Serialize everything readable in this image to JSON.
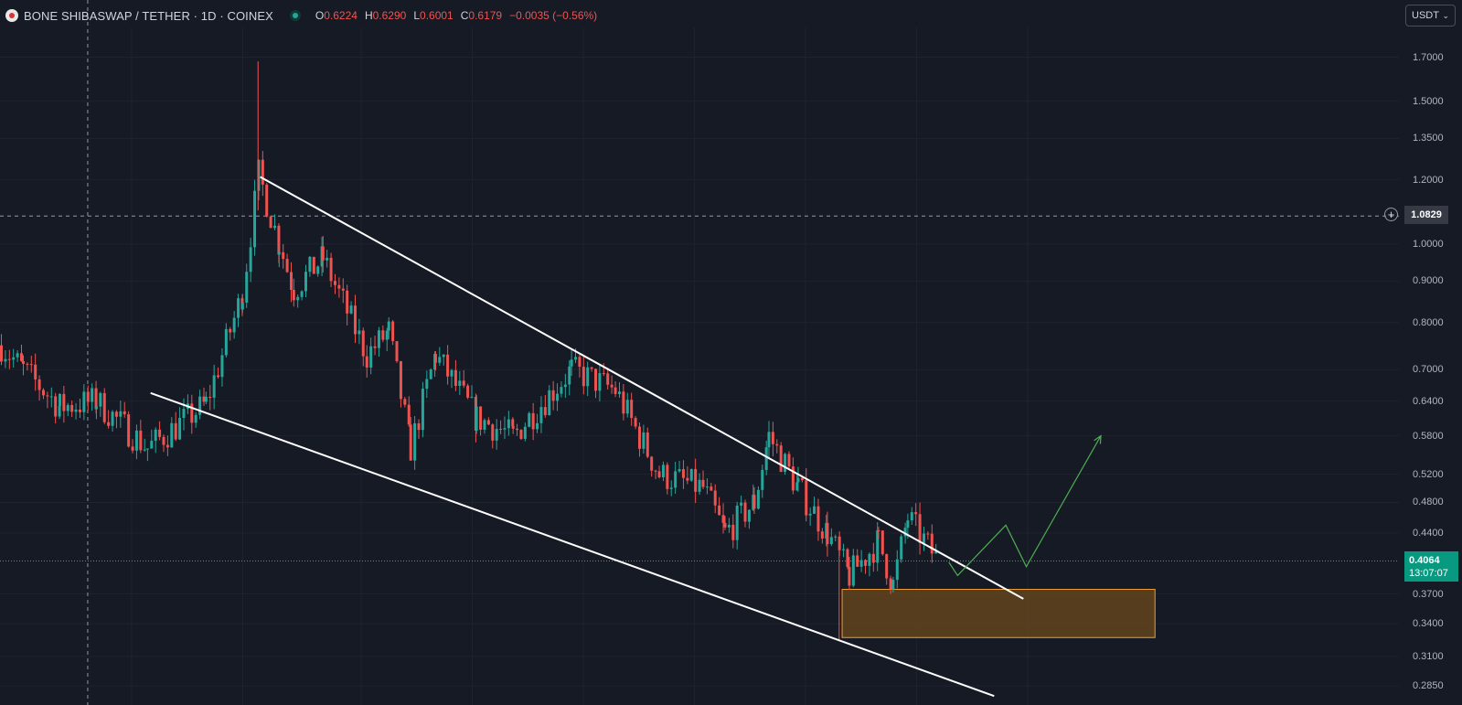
{
  "header": {
    "symbol": "BONE SHIBASWAP / TETHER · 1D · COINEX",
    "ohlc": [
      {
        "key": "O",
        "value": "0.6224"
      },
      {
        "key": "H",
        "value": "0.6290"
      },
      {
        "key": "L",
        "value": "0.6001"
      },
      {
        "key": "C",
        "value": "0.6179"
      }
    ],
    "change": "−0.0035 (−0.56%)"
  },
  "currency_button": {
    "label": "USDT",
    "icon": "chevron-down-icon"
  },
  "price_axis": {
    "labels": [
      "1.7000",
      "1.5000",
      "1.3500",
      "1.2000",
      "1.0000",
      "0.9000",
      "0.8000",
      "0.7000",
      "0.6400",
      "0.5800",
      "0.5200",
      "0.4800",
      "0.4400",
      "0.3700",
      "0.3400",
      "0.3100",
      "0.2850"
    ],
    "crosshair_price": "1.0829",
    "last_price": "0.4064",
    "countdown": "13:07:07"
  },
  "colors": {
    "background": "#161a25",
    "up": "#26a69a",
    "down": "#ef5350",
    "trendline": "#ffffff",
    "projection": "#4caf50",
    "zone_fill": "#6b4a1c",
    "zone_border": "#f0a030"
  },
  "chart_data": {
    "type": "candlestick",
    "scale": "log",
    "interval": "1D",
    "ylim": [
      0.27,
      1.85
    ],
    "last_price": 0.4064,
    "crosshair_price": 1.0829,
    "drawings": {
      "upper_trendline": [
        [
          0.178,
          1.21
        ],
        [
          0.7,
          0.365
        ]
      ],
      "lower_trendline": [
        [
          0.103,
          0.655
        ],
        [
          0.68,
          0.277
        ]
      ],
      "support_zone": {
        "x": [
          0.576,
          0.79
        ],
        "y": [
          0.327,
          0.375
        ]
      },
      "projection_path": [
        [
          0.649,
          0.405
        ],
        [
          0.655,
          0.39
        ],
        [
          0.688,
          0.45
        ],
        [
          0.702,
          0.4
        ],
        [
          0.753,
          0.58
        ]
      ]
    },
    "segments": [
      {
        "x": [
          0.0,
          0.015
        ],
        "p": [
          0.75,
          0.7
        ]
      },
      {
        "x": [
          0.015,
          0.04
        ],
        "p": [
          0.7,
          0.63
        ]
      },
      {
        "x": [
          0.04,
          0.065
        ],
        "p": [
          0.63,
          0.64
        ]
      },
      {
        "x": [
          0.065,
          0.1
        ],
        "p": [
          0.64,
          0.56
        ]
      },
      {
        "x": [
          0.1,
          0.14
        ],
        "p": [
          0.56,
          0.635
        ]
      },
      {
        "x": [
          0.14,
          0.165
        ],
        "p": [
          0.635,
          0.87
        ]
      },
      {
        "x": [
          0.165,
          0.176
        ],
        "p": [
          0.87,
          1.22
        ]
      },
      {
        "x": [
          0.176,
          0.19
        ],
        "p": [
          1.22,
          1.0
        ]
      },
      {
        "x": [
          0.19,
          0.2
        ],
        "p": [
          1.0,
          0.88
        ]
      },
      {
        "x": [
          0.2,
          0.22
        ],
        "p": [
          0.88,
          0.96
        ]
      },
      {
        "x": [
          0.22,
          0.25
        ],
        "p": [
          0.96,
          0.73
        ]
      },
      {
        "x": [
          0.25,
          0.265
        ],
        "p": [
          0.73,
          0.78
        ]
      },
      {
        "x": [
          0.265,
          0.28
        ],
        "p": [
          0.78,
          0.56
        ]
      },
      {
        "x": [
          0.28,
          0.297
        ],
        "p": [
          0.56,
          0.73
        ]
      },
      {
        "x": [
          0.297,
          0.325
        ],
        "p": [
          0.73,
          0.61
        ]
      },
      {
        "x": [
          0.325,
          0.35
        ],
        "p": [
          0.61,
          0.58
        ]
      },
      {
        "x": [
          0.35,
          0.39
        ],
        "p": [
          0.58,
          0.7
        ]
      },
      {
        "x": [
          0.39,
          0.42
        ],
        "p": [
          0.7,
          0.66
        ]
      },
      {
        "x": [
          0.42,
          0.45
        ],
        "p": [
          0.66,
          0.52
        ]
      },
      {
        "x": [
          0.45,
          0.48
        ],
        "p": [
          0.52,
          0.5
        ]
      },
      {
        "x": [
          0.48,
          0.495
        ],
        "p": [
          0.5,
          0.44
        ]
      },
      {
        "x": [
          0.495,
          0.515
        ],
        "p": [
          0.44,
          0.48
        ]
      },
      {
        "x": [
          0.515,
          0.525
        ],
        "p": [
          0.48,
          0.58
        ]
      },
      {
        "x": [
          0.525,
          0.545
        ],
        "p": [
          0.58,
          0.5
        ]
      },
      {
        "x": [
          0.545,
          0.565
        ],
        "p": [
          0.5,
          0.44
        ]
      },
      {
        "x": [
          0.565,
          0.58
        ],
        "p": [
          0.44,
          0.39
        ]
      },
      {
        "x": [
          0.58,
          0.6
        ],
        "p": [
          0.39,
          0.43
        ]
      },
      {
        "x": [
          0.6,
          0.61
        ],
        "p": [
          0.43,
          0.38
        ]
      },
      {
        "x": [
          0.61,
          0.62
        ],
        "p": [
          0.38,
          0.46
        ]
      },
      {
        "x": [
          0.62,
          0.641
        ],
        "p": [
          0.46,
          0.4064
        ]
      }
    ]
  }
}
